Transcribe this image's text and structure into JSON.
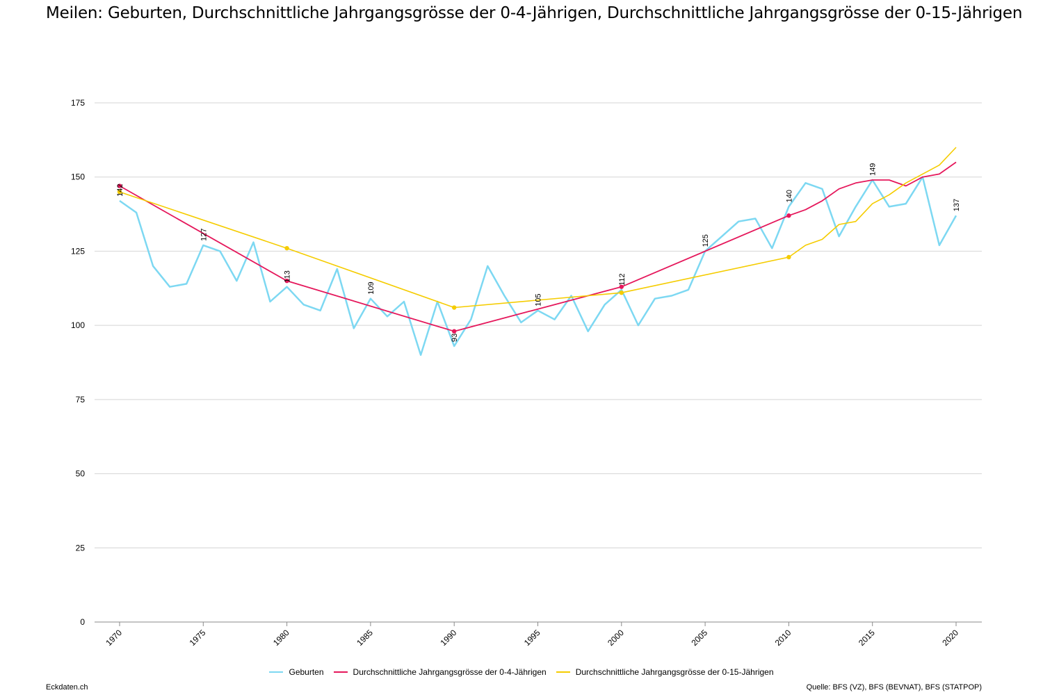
{
  "page": {
    "title": "Meilen: Geburten, Durchschnittliche Jahrgangsgrösse der 0-4-Jährigen, Durchschnittliche Jahrgangsgrösse der 0-15-Jährigen",
    "brand": "Eckdaten.ch",
    "source": "Quelle: BFS (VZ), BFS (BEVNAT), BFS (STATPOP)"
  },
  "chart_data": {
    "type": "line",
    "title": "Meilen: Geburten, Durchschnittliche Jahrgangsgrösse der 0-4-Jährigen, Durchschnittliche Jahrgangsgrösse der 0-15-Jährigen",
    "xlabel": "",
    "ylabel": "",
    "xlim": [
      1970,
      2020
    ],
    "ylim": [
      0,
      175
    ],
    "xticks": [
      1970,
      1975,
      1980,
      1985,
      1990,
      1995,
      2000,
      2005,
      2010,
      2015,
      2020
    ],
    "yticks": [
      0,
      25,
      50,
      75,
      100,
      125,
      150,
      175
    ],
    "grid": "horizontal",
    "legend_position": "bottom",
    "series": [
      {
        "name": "Geburten",
        "color": "#7dd8f2",
        "x": [
          1970,
          1971,
          1972,
          1973,
          1974,
          1975,
          1976,
          1977,
          1978,
          1979,
          1980,
          1981,
          1982,
          1983,
          1984,
          1985,
          1986,
          1987,
          1988,
          1989,
          1990,
          1991,
          1992,
          1993,
          1994,
          1995,
          1996,
          1997,
          1998,
          1999,
          2000,
          2001,
          2002,
          2003,
          2004,
          2005,
          2006,
          2007,
          2008,
          2009,
          2010,
          2011,
          2012,
          2013,
          2014,
          2015,
          2016,
          2017,
          2018,
          2019,
          2020
        ],
        "y": [
          142,
          138,
          120,
          113,
          114,
          127,
          125,
          115,
          128,
          108,
          113,
          107,
          105,
          119,
          99,
          109,
          103,
          108,
          90,
          108,
          93,
          102,
          120,
          110,
          101,
          105,
          102,
          110,
          98,
          107,
          112,
          100,
          109,
          110,
          112,
          125,
          130,
          135,
          136,
          126,
          140,
          148,
          146,
          130,
          140,
          149,
          140,
          141,
          150,
          127,
          137
        ],
        "point_labels": {
          "1970": "142",
          "1975": "127",
          "1980": "113",
          "1985": "109",
          "1990": "93",
          "1995": "105",
          "2000": "112",
          "2005": "125",
          "2010": "140",
          "2015": "149",
          "2020": "137"
        }
      },
      {
        "name": "Durchschnittliche Jahrgangsgrösse der 0-4-Jährigen",
        "color": "#e5175b",
        "x": [
          1970,
          1980,
          1990,
          2000,
          2010,
          2011,
          2012,
          2013,
          2014,
          2015,
          2016,
          2017,
          2018,
          2019,
          2020
        ],
        "y": [
          147,
          115,
          98,
          113,
          137,
          139,
          142,
          146,
          148,
          149,
          149,
          147,
          150,
          151,
          155
        ],
        "markers": [
          1970,
          1980,
          1990,
          2000,
          2010
        ]
      },
      {
        "name": "Durchschnittliche Jahrgangsgrösse der 0-15-Jährigen",
        "color": "#f5cc00",
        "x": [
          1970,
          1980,
          1990,
          2000,
          2010,
          2011,
          2012,
          2013,
          2014,
          2015,
          2016,
          2017,
          2018,
          2019,
          2020
        ],
        "y": [
          145,
          126,
          106,
          111,
          123,
          127,
          129,
          134,
          135,
          141,
          144,
          148,
          151,
          154,
          160
        ],
        "markers": [
          1970,
          1980,
          1990,
          2000,
          2010
        ]
      }
    ]
  }
}
